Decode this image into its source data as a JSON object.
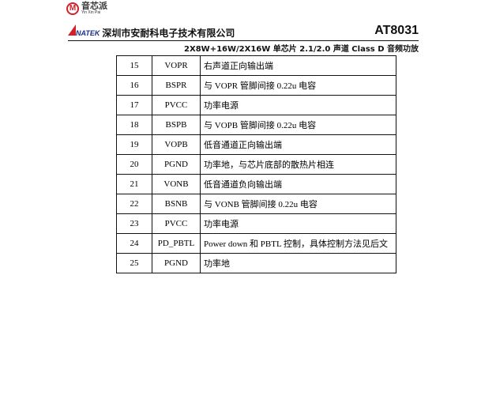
{
  "header": {
    "logo_text": "音芯派",
    "logo_sub": "Yin Xin Pai",
    "brand": "NATEK",
    "company": "深圳市安耐科电子技术有限公司",
    "model": "AT8031",
    "subtitle": "2X8W+16W/2X16W 单芯片 2.1/2.0 声道 Class D 音频功放"
  },
  "table": {
    "rows": [
      {
        "pin": "15",
        "name": "VOPR",
        "desc": "右声道正向输出端"
      },
      {
        "pin": "16",
        "name": "BSPR",
        "desc": "与 VOPR 管脚间接 0.22u 电容"
      },
      {
        "pin": "17",
        "name": "PVCC",
        "desc": "功率电源"
      },
      {
        "pin": "18",
        "name": "BSPB",
        "desc": "与 VOPB 管脚间接 0.22u 电容"
      },
      {
        "pin": "19",
        "name": "VOPB",
        "desc": "低音通道正向输出端"
      },
      {
        "pin": "20",
        "name": "PGND",
        "desc": "功率地，与芯片底部的散热片相连"
      },
      {
        "pin": "21",
        "name": "VONB",
        "desc": "低音通道负向输出端"
      },
      {
        "pin": "22",
        "name": "BSNB",
        "desc": "与 VONB 管脚间接 0.22u 电容"
      },
      {
        "pin": "23",
        "name": "PVCC",
        "desc": "功率电源"
      },
      {
        "pin": "24",
        "name": "PD_PBTL",
        "desc": "Power down 和 PBTL 控制，具体控制方法见后文"
      },
      {
        "pin": "25",
        "name": "PGND",
        "desc": "功率地"
      }
    ]
  }
}
